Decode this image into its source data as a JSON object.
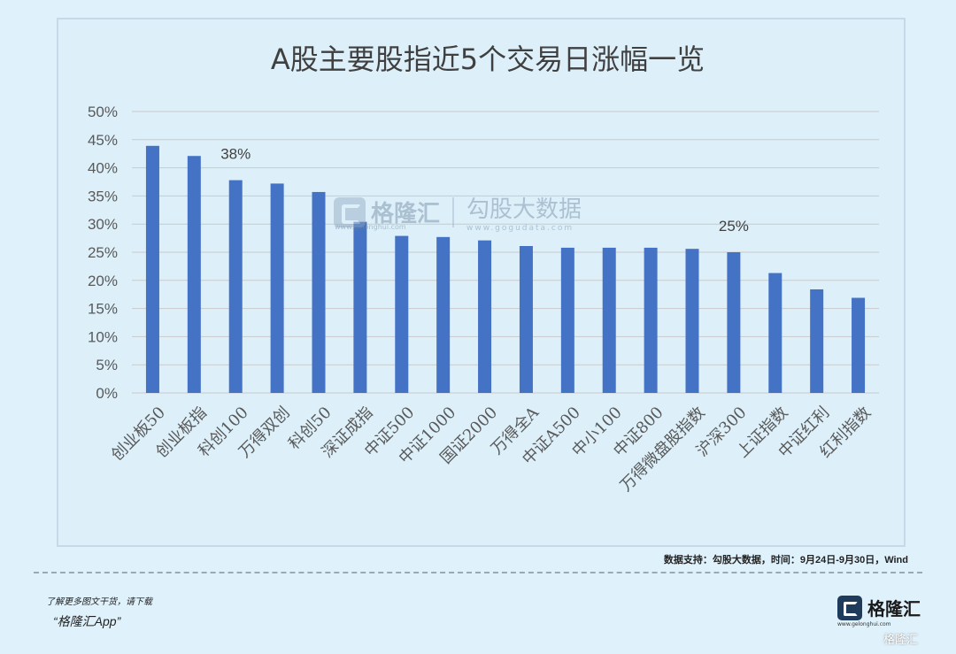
{
  "chart_data": {
    "type": "bar",
    "title": "A股主要股指近5个交易日涨幅一览",
    "categories": [
      "创业板50",
      "创业板指",
      "科创100",
      "万得双创",
      "科创50",
      "深证成指",
      "中证500",
      "中证1000",
      "国证2000",
      "万得全A",
      "中证A500",
      "中小100",
      "中证800",
      "万得微盘股指数",
      "沪深300",
      "上证指数",
      "中证红利",
      "红利指数"
    ],
    "values": [
      43.9,
      42.1,
      37.8,
      37.2,
      35.7,
      30.4,
      27.9,
      27.7,
      27.1,
      26.1,
      25.8,
      25.8,
      25.8,
      25.6,
      25.0,
      21.3,
      18.4,
      16.9
    ],
    "yticks": [
      "0%",
      "5%",
      "10%",
      "15%",
      "20%",
      "25%",
      "30%",
      "35%",
      "40%",
      "45%",
      "50%"
    ],
    "ylim": [
      0,
      50
    ],
    "annotations": [
      {
        "index": 2,
        "text": "38%"
      },
      {
        "index": 14,
        "text": "25%"
      }
    ],
    "bar_color": "#4472c4",
    "grid": true,
    "legend": "none"
  },
  "watermark": {
    "brand": "格隆汇",
    "name": "勾股大数据",
    "url": "www.gogudata.com",
    "brand_url": "www.gelonghui.com"
  },
  "source_note": "数据支持：勾股大数据，时间：9月24日-9月30日，Wind",
  "footer": {
    "line1": "了解更多图文干货，请下载",
    "line2": "“格隆汇App”"
  },
  "logo": {
    "text": "格隆汇",
    "url": "www.gelonghui.com"
  },
  "corner_mark": "格隆汇"
}
